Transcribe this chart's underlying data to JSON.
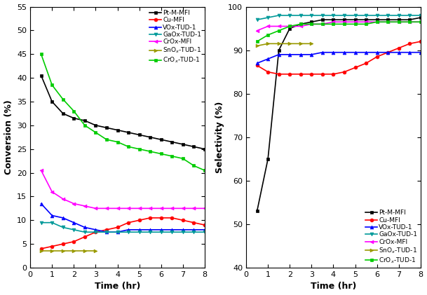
{
  "conv": {
    "Pt-M-MFI": {
      "color": "#000000",
      "marker": "s",
      "x": [
        0.5,
        1.0,
        1.5,
        2.0,
        2.5,
        3.0,
        3.5,
        4.0,
        4.5,
        5.0,
        5.5,
        6.0,
        6.5,
        7.0,
        7.5,
        8.0
      ],
      "y": [
        40.5,
        35.0,
        32.5,
        31.5,
        31.0,
        30.0,
        29.5,
        29.0,
        28.5,
        28.0,
        27.5,
        27.0,
        26.5,
        26.0,
        25.5,
        25.0
      ]
    },
    "Cu-MFI": {
      "color": "#ff0000",
      "marker": "o",
      "x": [
        0.5,
        1.0,
        1.5,
        2.0,
        2.5,
        3.0,
        3.5,
        4.0,
        4.5,
        5.0,
        5.5,
        6.0,
        6.5,
        7.0,
        7.5,
        8.0
      ],
      "y": [
        4.0,
        4.5,
        5.0,
        5.5,
        6.5,
        7.5,
        8.0,
        8.5,
        9.5,
        10.0,
        10.5,
        10.5,
        10.5,
        10.0,
        9.5,
        9.0
      ]
    },
    "VOx-TUD-1": {
      "color": "#0000ff",
      "marker": "^",
      "x": [
        0.5,
        1.0,
        1.5,
        2.0,
        2.5,
        3.0,
        3.5,
        4.0,
        4.5,
        5.0,
        5.5,
        6.0,
        6.5,
        7.0,
        7.5,
        8.0
      ],
      "y": [
        13.5,
        11.0,
        10.5,
        9.5,
        8.5,
        8.0,
        7.5,
        7.5,
        8.0,
        8.0,
        8.0,
        8.0,
        8.0,
        8.0,
        8.0,
        8.0
      ]
    },
    "GaOx-TUD-1": {
      "color": "#009999",
      "marker": "v",
      "x": [
        0.5,
        1.0,
        1.5,
        2.0,
        2.5,
        3.0,
        3.5,
        4.0,
        4.5,
        5.0,
        5.5,
        6.0,
        6.5,
        7.0,
        7.5,
        8.0
      ],
      "y": [
        9.5,
        9.5,
        8.5,
        8.0,
        7.5,
        7.5,
        7.5,
        7.5,
        7.5,
        7.5,
        7.5,
        7.5,
        7.5,
        7.5,
        7.5,
        7.5
      ]
    },
    "CrOx-MFI": {
      "color": "#ff00ff",
      "marker": "<",
      "x": [
        0.5,
        1.0,
        1.5,
        2.0,
        2.5,
        3.0,
        3.5,
        4.0,
        4.5,
        5.0,
        5.5,
        6.0,
        6.5,
        7.0,
        7.5,
        8.0
      ],
      "y": [
        20.5,
        16.0,
        14.5,
        13.5,
        13.0,
        12.5,
        12.5,
        12.5,
        12.5,
        12.5,
        12.5,
        12.5,
        12.5,
        12.5,
        12.5,
        12.5
      ]
    },
    "SnOx-TUD-1": {
      "color": "#999900",
      "marker": ">",
      "x": [
        0.5,
        1.0,
        1.5,
        2.0,
        2.5,
        3.0
      ],
      "y": [
        3.5,
        3.5,
        3.5,
        3.5,
        3.5,
        3.5
      ]
    },
    "CrOx-TUD-1": {
      "color": "#00cc00",
      "marker": "s",
      "x": [
        0.5,
        1.0,
        1.5,
        2.0,
        2.5,
        3.0,
        3.5,
        4.0,
        4.5,
        5.0,
        5.5,
        6.0,
        6.5,
        7.0,
        7.5,
        8.0
      ],
      "y": [
        45.0,
        38.5,
        35.5,
        33.0,
        30.0,
        28.5,
        27.0,
        26.5,
        25.5,
        25.0,
        24.5,
        24.0,
        23.5,
        23.0,
        21.5,
        20.5
      ]
    }
  },
  "sel": {
    "Pt-M-MFI": {
      "color": "#000000",
      "marker": "s",
      "x": [
        0.5,
        1.0,
        1.5,
        2.0,
        2.5,
        3.0,
        3.5,
        4.0,
        4.5,
        5.0,
        5.5,
        6.0,
        6.5,
        7.0,
        7.5,
        8.0
      ],
      "y": [
        53.0,
        65.0,
        90.0,
        95.0,
        96.0,
        96.5,
        97.0,
        97.0,
        97.0,
        97.0,
        97.0,
        97.0,
        97.0,
        97.0,
        97.0,
        97.5
      ]
    },
    "Cu-MFI": {
      "color": "#ff0000",
      "marker": "o",
      "x": [
        0.5,
        1.0,
        1.5,
        2.0,
        2.5,
        3.0,
        3.5,
        4.0,
        4.5,
        5.0,
        5.5,
        6.0,
        6.5,
        7.0,
        7.5,
        8.0
      ],
      "y": [
        86.5,
        85.0,
        84.5,
        84.5,
        84.5,
        84.5,
        84.5,
        84.5,
        85.0,
        86.0,
        87.0,
        88.5,
        89.5,
        90.5,
        91.5,
        92.0
      ]
    },
    "VOx-TUD-1": {
      "color": "#0000ff",
      "marker": "^",
      "x": [
        0.5,
        1.0,
        1.5,
        2.0,
        2.5,
        3.0,
        3.5,
        4.0,
        4.5,
        5.0,
        5.5,
        6.0,
        6.5,
        7.0,
        7.5,
        8.0
      ],
      "y": [
        87.0,
        88.0,
        89.0,
        89.0,
        89.0,
        89.0,
        89.5,
        89.5,
        89.5,
        89.5,
        89.5,
        89.5,
        89.5,
        89.5,
        89.5,
        89.5
      ]
    },
    "GaOx-TUD-1": {
      "color": "#009999",
      "marker": "v",
      "x": [
        0.5,
        1.0,
        1.5,
        2.0,
        2.5,
        3.0,
        3.5,
        4.0,
        4.5,
        5.0,
        5.5,
        6.0,
        6.5,
        7.0,
        7.5,
        8.0
      ],
      "y": [
        97.0,
        97.5,
        98.0,
        98.0,
        98.0,
        98.0,
        98.0,
        98.0,
        98.0,
        98.0,
        98.0,
        98.0,
        98.0,
        98.0,
        98.0,
        98.0
      ]
    },
    "CrOx-MFI": {
      "color": "#ff00ff",
      "marker": "<",
      "x": [
        0.5,
        1.0,
        1.5,
        2.0,
        2.5,
        3.0,
        3.5,
        4.0,
        4.5,
        5.0,
        5.5,
        6.0,
        6.5,
        7.0,
        7.5,
        8.0
      ],
      "y": [
        94.5,
        95.5,
        95.5,
        95.5,
        95.5,
        96.0,
        96.0,
        96.5,
        96.5,
        96.5,
        96.5,
        96.5,
        96.5,
        96.5,
        96.5,
        96.5
      ]
    },
    "SnOx-TUD-1": {
      "color": "#999900",
      "marker": ">",
      "x": [
        0.5,
        1.0,
        1.5,
        2.0,
        2.5,
        3.0
      ],
      "y": [
        91.0,
        91.5,
        91.5,
        91.5,
        91.5,
        91.5
      ]
    },
    "CrOx-TUD-1": {
      "color": "#00cc00",
      "marker": "s",
      "x": [
        0.5,
        1.0,
        1.5,
        2.0,
        2.5,
        3.0,
        3.5,
        4.0,
        4.5,
        5.0,
        5.5,
        6.0,
        6.5,
        7.0,
        7.5,
        8.0
      ],
      "y": [
        92.0,
        93.5,
        94.5,
        95.5,
        96.0,
        96.0,
        96.0,
        96.0,
        96.0,
        96.0,
        96.0,
        96.5,
        96.5,
        96.5,
        96.5,
        96.5
      ]
    }
  },
  "conv_ylabel": "Conversion (%)",
  "sel_ylabel": "Selectivity (%)",
  "xlabel": "Time (hr)",
  "conv_ylim": [
    0,
    55
  ],
  "sel_ylim": [
    40,
    100
  ],
  "conv_yticks": [
    0,
    5,
    10,
    15,
    20,
    25,
    30,
    35,
    40,
    45,
    50,
    55
  ],
  "sel_yticks": [
    40,
    50,
    60,
    70,
    80,
    90,
    100
  ],
  "xlim": [
    0,
    8
  ],
  "xticks": [
    0,
    1,
    2,
    3,
    4,
    5,
    6,
    7,
    8
  ],
  "axis_fontsize": 9,
  "tick_fontsize": 8,
  "legend_fontsize": 6.5,
  "ms": 3.5,
  "lw": 1.2
}
